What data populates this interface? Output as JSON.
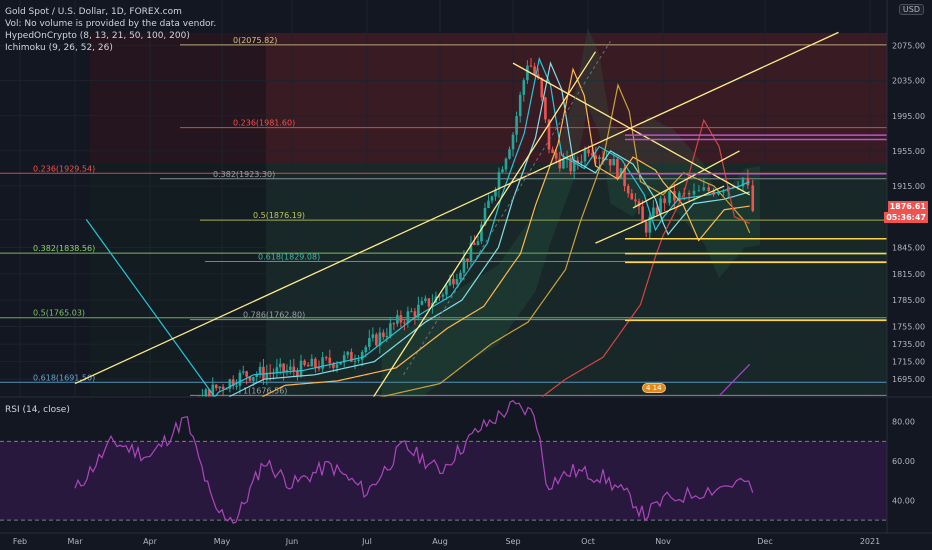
{
  "legend": {
    "line1": "Gold Spot / U.S. Dollar, 1D, FOREX.com",
    "line2": "Vol: No volume is provided by the data vendor.",
    "line3": "HypedOnCrypto (8, 13, 21, 50, 100, 200)",
    "line4": "Ichimoku (9, 26, 52, 26)"
  },
  "currency": "USD",
  "rsi_label": "RSI (14, close)",
  "price_tags": {
    "last": "1876.61",
    "countdown": "05:36:47"
  },
  "event_badge": "4  14",
  "colors": {
    "background": "#131722",
    "up": "#26a69a",
    "down": "#ef5350",
    "rsi": "#9c27b0",
    "trend": "#ffeb8a"
  },
  "chart_data": {
    "type": "candlestick",
    "price_axis": {
      "range": [
        1677,
        2095
      ],
      "ticks": [
        2075,
        2035,
        1995,
        1955,
        1915,
        1876.61,
        1845,
        1815,
        1785,
        1755,
        1735,
        1715,
        1695
      ]
    },
    "time_axis": {
      "labels": [
        "Feb",
        "Mar",
        "Apr",
        "May",
        "Jun",
        "Jul",
        "Aug",
        "Sep",
        "Oct",
        "Nov",
        "Dec",
        "2021"
      ]
    },
    "fib_levels": [
      {
        "label": "0(2075.82)",
        "price": 2075.82
      },
      {
        "label": "0.236(1981.60)",
        "price": 1981.6
      },
      {
        "label": "0.236(1929.54)",
        "price": 1929.54
      },
      {
        "label": "0.382(1923.30)",
        "price": 1923.3
      },
      {
        "label": "0.5(1876.19)",
        "price": 1876.19
      },
      {
        "label": "0.382(1838.56)",
        "price": 1838.56
      },
      {
        "label": "0.618(1829.08)",
        "price": 1829.08
      },
      {
        "label": "0.5(1765.03)",
        "price": 1765.03
      },
      {
        "label": "0.786(1762.80)",
        "price": 1762.8
      },
      {
        "label": "0.618(1691.50)",
        "price": 1691.5
      },
      {
        "label": "1(1676.56)",
        "price": 1676.56
      }
    ],
    "price_path": [
      {
        "month": 1.0,
        "price": 1580
      },
      {
        "month": 2.2,
        "price": 1615
      },
      {
        "month": 2.8,
        "price": 1680
      },
      {
        "month": 3.3,
        "price": 1700
      },
      {
        "month": 4.0,
        "price": 1705
      },
      {
        "month": 4.8,
        "price": 1720
      },
      {
        "month": 5.5,
        "price": 1765
      },
      {
        "month": 6.0,
        "price": 1790
      },
      {
        "month": 6.5,
        "price": 1850
      },
      {
        "month": 6.7,
        "price": 1905
      },
      {
        "month": 7.0,
        "price": 1975
      },
      {
        "month": 7.2,
        "price": 2060
      },
      {
        "month": 7.35,
        "price": 2030
      },
      {
        "month": 7.5,
        "price": 1950
      },
      {
        "month": 7.8,
        "price": 1935
      },
      {
        "month": 8.0,
        "price": 1960
      },
      {
        "month": 8.3,
        "price": 1945
      },
      {
        "month": 8.6,
        "price": 1905
      },
      {
        "month": 8.75,
        "price": 1865
      },
      {
        "month": 9.0,
        "price": 1900
      },
      {
        "month": 9.3,
        "price": 1905
      },
      {
        "month": 9.6,
        "price": 1915
      },
      {
        "month": 9.8,
        "price": 1925
      },
      {
        "month": 9.9,
        "price": 1877
      }
    ],
    "rsi": {
      "ticks": [
        80,
        60,
        40
      ],
      "levels": [
        70,
        30
      ],
      "range": [
        25,
        90
      ],
      "points": [
        {
          "month": 1.0,
          "value": 45
        },
        {
          "month": 1.5,
          "value": 70
        },
        {
          "month": 2.0,
          "value": 62
        },
        {
          "month": 2.5,
          "value": 82
        },
        {
          "month": 2.9,
          "value": 35
        },
        {
          "month": 3.2,
          "value": 30
        },
        {
          "month": 3.6,
          "value": 60
        },
        {
          "month": 4.0,
          "value": 48
        },
        {
          "month": 4.5,
          "value": 58
        },
        {
          "month": 5.0,
          "value": 44
        },
        {
          "month": 5.5,
          "value": 68
        },
        {
          "month": 6.0,
          "value": 55
        },
        {
          "month": 6.5,
          "value": 75
        },
        {
          "month": 7.0,
          "value": 88
        },
        {
          "month": 7.3,
          "value": 84
        },
        {
          "month": 7.45,
          "value": 48
        },
        {
          "month": 7.8,
          "value": 55
        },
        {
          "month": 8.2,
          "value": 52
        },
        {
          "month": 8.6,
          "value": 40
        },
        {
          "month": 8.75,
          "value": 32
        },
        {
          "month": 9.0,
          "value": 40
        },
        {
          "month": 9.5,
          "value": 46
        },
        {
          "month": 9.8,
          "value": 50
        },
        {
          "month": 9.9,
          "value": 41
        }
      ]
    }
  }
}
